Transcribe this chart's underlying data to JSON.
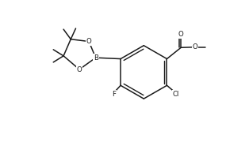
{
  "bg": "#ffffff",
  "lc": "#1a1a1a",
  "lw": 1.1,
  "fs": 6.2,
  "figsize": [
    3.14,
    1.8
  ],
  "dpi": 100,
  "xlim": [
    -0.5,
    9.8
  ],
  "ylim": [
    -0.3,
    6.0
  ]
}
